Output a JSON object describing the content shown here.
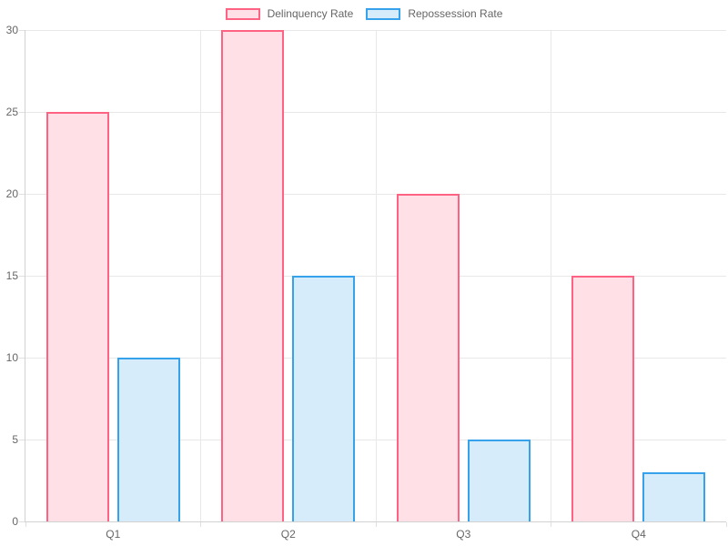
{
  "chart_data": {
    "type": "bar",
    "title": "",
    "xlabel": "",
    "ylabel": "",
    "categories": [
      "Q1",
      "Q2",
      "Q3",
      "Q4"
    ],
    "series": [
      {
        "name": "Delinquency Rate",
        "values": [
          25,
          30,
          20,
          15
        ],
        "border_color": "#FF6384",
        "fill_color": "#FFE0E6"
      },
      {
        "name": "Repossession Rate",
        "values": [
          10,
          15,
          5,
          3
        ],
        "border_color": "#36A2EB",
        "fill_color": "#D7ECFB"
      }
    ],
    "ylim": [
      0,
      30
    ],
    "yticks": [
      0,
      5,
      10,
      15,
      20,
      25,
      30
    ],
    "grid": true,
    "legend_position": "top"
  },
  "colors": {
    "background": "#FFFFFF",
    "gridline": "#E8E8E8",
    "axis_line": "#D2D2D2",
    "tick_mark": "#E0E0E0",
    "tick_text": "#666666"
  }
}
